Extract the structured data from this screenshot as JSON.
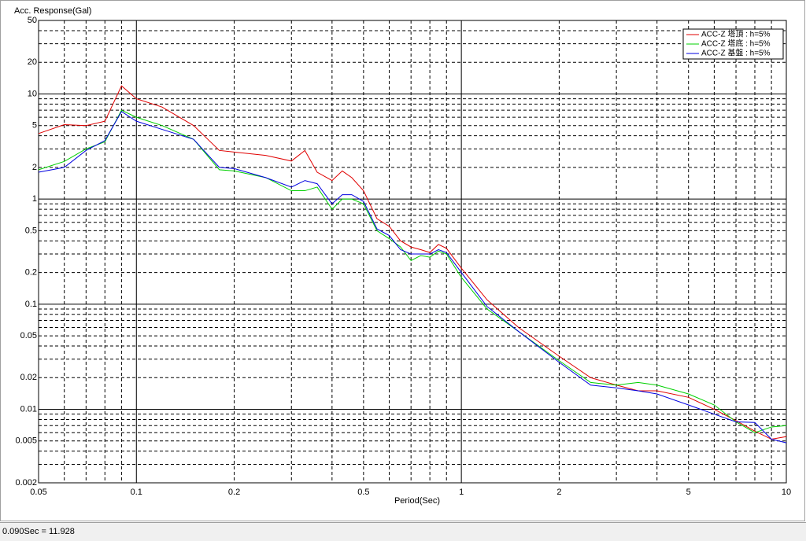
{
  "chart_data": {
    "type": "line",
    "y_label": "Acc. Response(Gal)",
    "x_label": "Period(Sec)",
    "xscale": "log",
    "yscale": "log",
    "grid": true,
    "legend_position": "upper right",
    "xlim": [
      0.05,
      10
    ],
    "ylim": [
      0.002,
      50
    ],
    "xticks": [
      0.05,
      0.1,
      0.2,
      0.5,
      1,
      2,
      5,
      10
    ],
    "yticks": [
      0.002,
      0.005,
      0.01,
      0.02,
      0.05,
      0.1,
      0.2,
      0.5,
      1,
      2,
      5,
      10,
      20,
      50
    ],
    "x": [
      0.05,
      0.06,
      0.07,
      0.08,
      0.09,
      0.1,
      0.12,
      0.15,
      0.18,
      0.2,
      0.25,
      0.3,
      0.33,
      0.36,
      0.4,
      0.43,
      0.46,
      0.5,
      0.55,
      0.6,
      0.65,
      0.7,
      0.75,
      0.8,
      0.85,
      0.9,
      1.0,
      1.2,
      1.5,
      2,
      2.5,
      3,
      3.5,
      4,
      5,
      6,
      7,
      8,
      9,
      10
    ],
    "series": [
      {
        "name": "ACC-Z 塔頂 : h=5%",
        "color": "#e00000",
        "values": [
          4.2,
          5.1,
          5.0,
          5.5,
          11.928,
          9.0,
          7.5,
          5.0,
          2.9,
          2.8,
          2.6,
          2.3,
          2.9,
          1.8,
          1.5,
          1.85,
          1.6,
          1.2,
          0.65,
          0.55,
          0.4,
          0.35,
          0.33,
          0.31,
          0.37,
          0.34,
          0.22,
          0.11,
          0.06,
          0.032,
          0.02,
          0.017,
          0.015,
          0.015,
          0.013,
          0.01,
          0.0078,
          0.0062,
          0.0052,
          0.0055
        ]
      },
      {
        "name": "ACC-Z 塔底 : h=5%",
        "color": "#00d000",
        "values": [
          1.9,
          2.28,
          3.0,
          3.5,
          7.0,
          6.0,
          5.0,
          3.7,
          1.9,
          1.85,
          1.6,
          1.2,
          1.2,
          1.3,
          0.8,
          1.0,
          1.0,
          0.9,
          0.5,
          0.42,
          0.35,
          0.26,
          0.29,
          0.28,
          0.32,
          0.3,
          0.18,
          0.09,
          0.055,
          0.029,
          0.018,
          0.017,
          0.018,
          0.017,
          0.014,
          0.011,
          0.0076,
          0.006,
          0.0068,
          0.007
        ]
      },
      {
        "name": "ACC-Z 基盤 : h=5%",
        "color": "#0000e0",
        "values": [
          1.8,
          2.0,
          2.9,
          3.6,
          6.8,
          5.5,
          4.6,
          3.7,
          2.0,
          1.95,
          1.6,
          1.3,
          1.5,
          1.4,
          0.9,
          1.1,
          1.1,
          0.95,
          0.52,
          0.45,
          0.33,
          0.3,
          0.3,
          0.3,
          0.33,
          0.31,
          0.2,
          0.095,
          0.055,
          0.028,
          0.017,
          0.016,
          0.015,
          0.014,
          0.011,
          0.009,
          0.0076,
          0.0075,
          0.0052,
          0.0048
        ]
      }
    ]
  },
  "status_bar": {
    "text": "0.090Sec = 11.928"
  }
}
